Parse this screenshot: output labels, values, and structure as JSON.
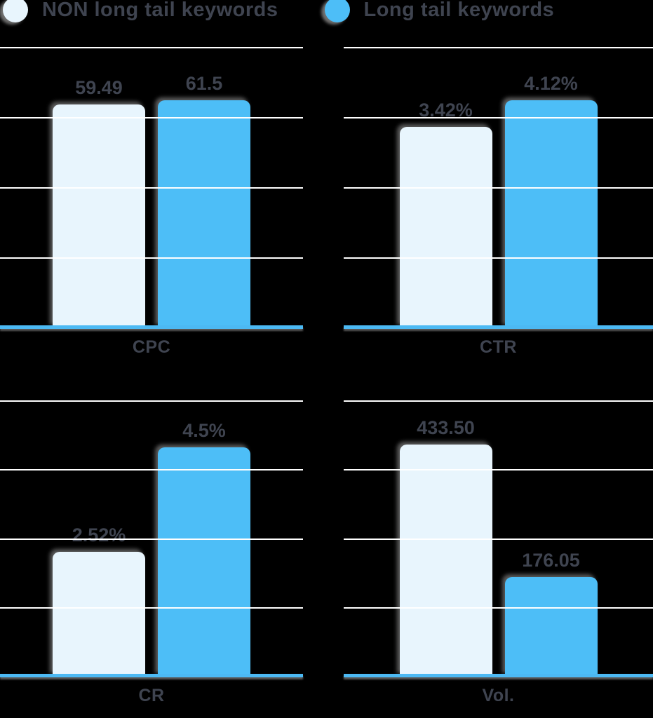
{
  "page": {
    "background": "#000000",
    "text_color": "#3F4450",
    "gridline_color": "#FFFFFF",
    "baseline_color": "#4CB9F3"
  },
  "legend": {
    "items": [
      {
        "label": "NON long tail keywords",
        "color": "#E8F5FD"
      },
      {
        "label": "Long tail keywords",
        "color": "#4DBEF7"
      }
    ]
  },
  "chart_data": [
    {
      "type": "bar",
      "metric": "CPC",
      "categories": [
        "NON long tail keywords",
        "Long tail keywords"
      ],
      "values": [
        59.49,
        61.5
      ],
      "value_labels": [
        "59.49",
        "61.5"
      ],
      "bar_height_pct": [
        79.5,
        81
      ],
      "gridlines": 4,
      "tick_labels": "none",
      "legend_position": "top"
    },
    {
      "type": "bar",
      "metric": "CTR",
      "categories": [
        "NON long tail keywords",
        "Long tail keywords"
      ],
      "values": [
        3.42,
        4.12
      ],
      "value_labels": [
        "3.42%",
        "4.12%"
      ],
      "bar_height_pct": [
        71.5,
        81
      ],
      "gridlines": 4,
      "tick_labels": "none",
      "legend_position": "top"
    },
    {
      "type": "bar",
      "metric": "CR",
      "categories": [
        "NON long tail keywords",
        "Long tail keywords"
      ],
      "values": [
        2.52,
        4.5
      ],
      "value_labels": [
        "2.52%",
        "4.5%"
      ],
      "bar_height_pct": [
        45,
        83
      ],
      "gridlines": 4,
      "tick_labels": "none",
      "legend_position": "top"
    },
    {
      "type": "bar",
      "metric": "Vol.",
      "categories": [
        "NON long tail keywords",
        "Long tail keywords"
      ],
      "values": [
        433.5,
        176.05
      ],
      "value_labels": [
        "433.50",
        "176.05"
      ],
      "bar_height_pct": [
        84,
        36
      ],
      "gridlines": 4,
      "tick_labels": "none",
      "legend_position": "top"
    }
  ]
}
